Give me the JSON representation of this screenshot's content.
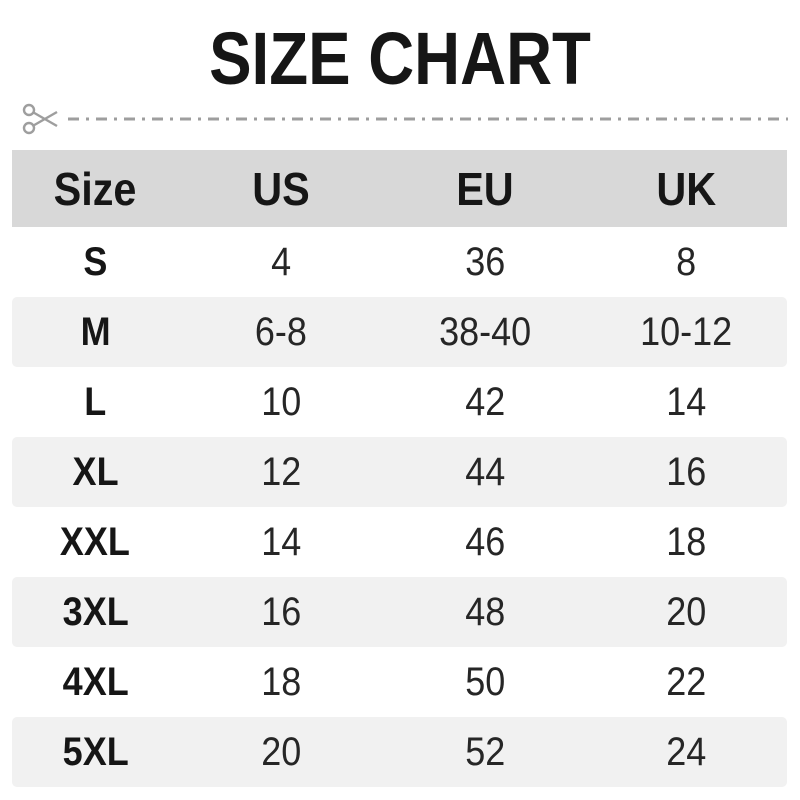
{
  "title": "SIZE CHART",
  "cut_line": {
    "icon": "scissors",
    "style": "dash-dot"
  },
  "chart_data": {
    "type": "table",
    "title": "SIZE CHART",
    "columns": [
      "Size",
      "US",
      "EU",
      "UK"
    ],
    "rows": [
      [
        "S",
        "4",
        "36",
        "8"
      ],
      [
        "M",
        "6-8",
        "38-40",
        "10-12"
      ],
      [
        "L",
        "10",
        "42",
        "14"
      ],
      [
        "XL",
        "12",
        "44",
        "16"
      ],
      [
        "XXL",
        "14",
        "46",
        "18"
      ],
      [
        "3XL",
        "16",
        "48",
        "20"
      ],
      [
        "4XL",
        "18",
        "50",
        "22"
      ],
      [
        "5XL",
        "20",
        "52",
        "24"
      ]
    ],
    "layout": {
      "header_background": "#d8d8d8",
      "zebra_striping": true,
      "striped_rows": [
        "M",
        "XL",
        "3XL",
        "5XL"
      ],
      "legend": "none",
      "grid": "off"
    }
  },
  "colors": {
    "header_bg": "#d8d8d8",
    "alt_row_bg": "#f1f1f1",
    "text_strong": "#161616",
    "text_data": "#262626",
    "cut_line": "#9e9e9e"
  }
}
